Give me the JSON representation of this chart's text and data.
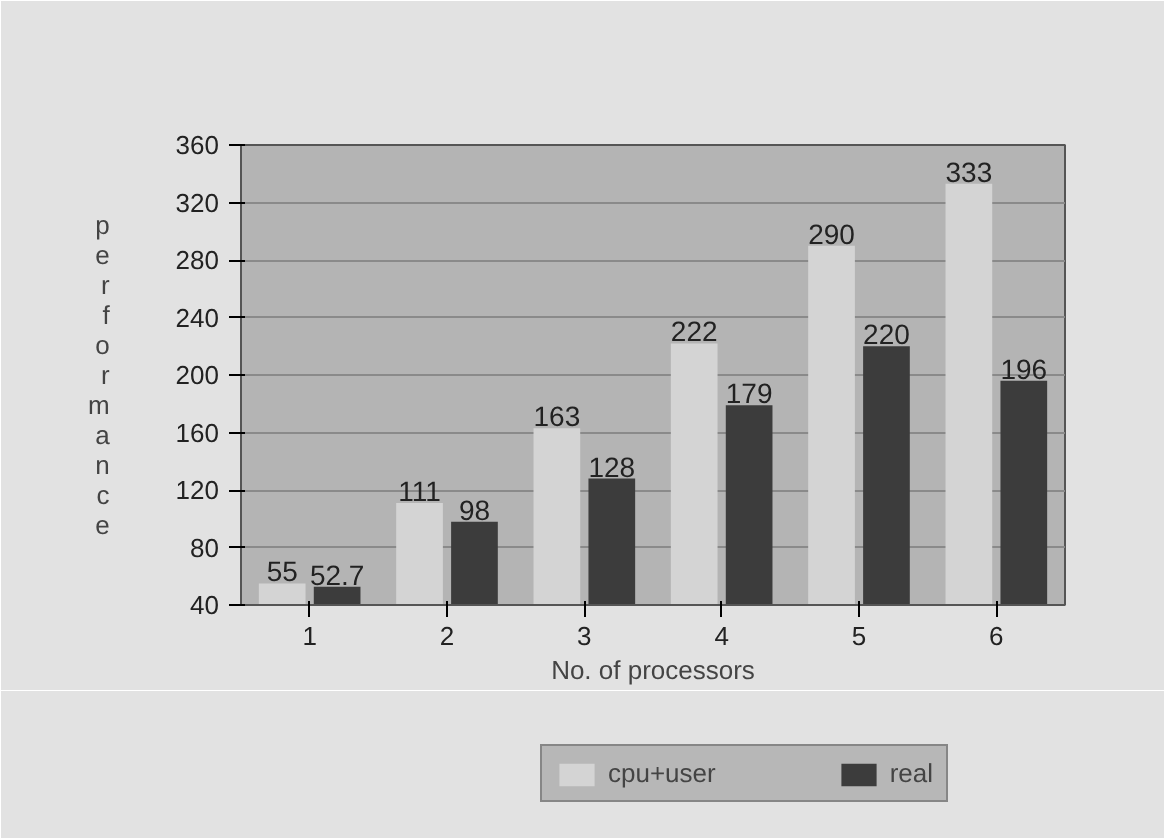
{
  "chart_data": {
    "type": "bar",
    "xlabel": "No. of processors",
    "ylabel": "performance",
    "categories": [
      "1",
      "2",
      "3",
      "4",
      "5",
      "6"
    ],
    "series": [
      {
        "name": "cpu+user",
        "color": "#d4d4d4",
        "values": [
          55,
          111,
          163,
          222,
          290,
          333
        ]
      },
      {
        "name": "real",
        "color": "#3c3c3c",
        "values": [
          52.7,
          98,
          128,
          179,
          220,
          196
        ]
      }
    ],
    "ylim": [
      40,
      360
    ],
    "yticks": [
      40,
      80,
      120,
      160,
      200,
      240,
      280,
      320,
      360
    ],
    "grid": "y",
    "legend": "bottom",
    "data_labels": true
  }
}
